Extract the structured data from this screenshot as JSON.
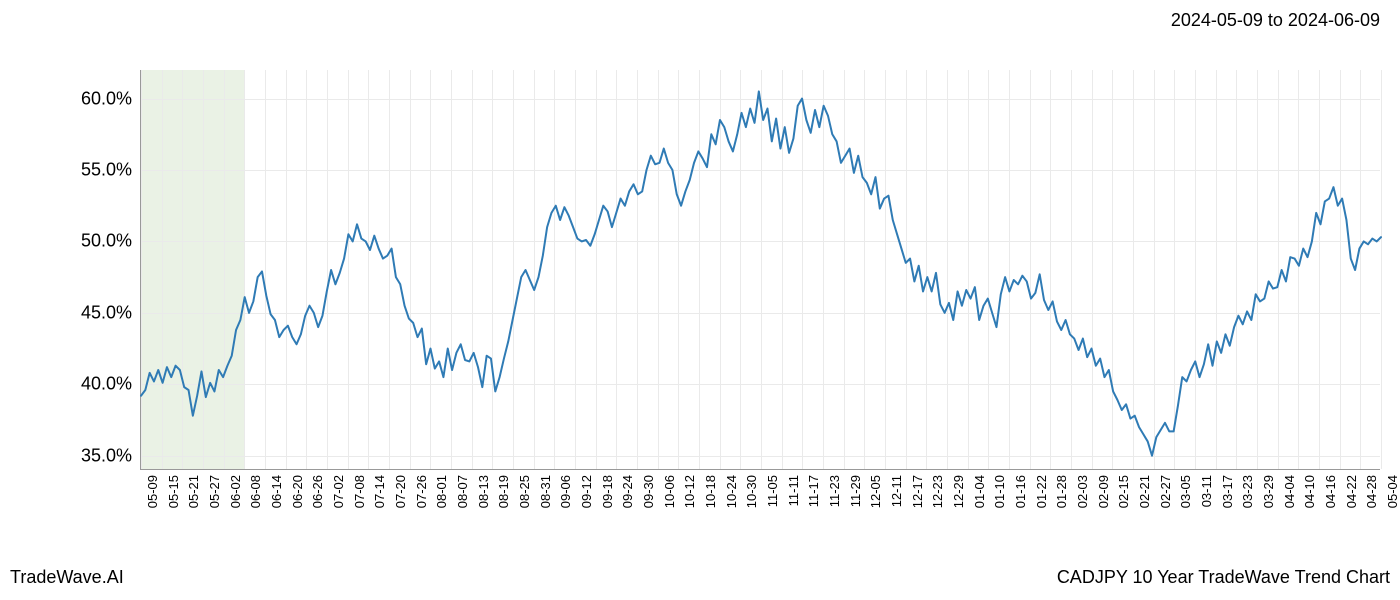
{
  "header": {
    "date_range": "2024-05-09 to 2024-06-09"
  },
  "footer": {
    "left": "TradeWave.AI",
    "right": "CADJPY 10 Year TradeWave Trend Chart"
  },
  "chart": {
    "type": "line",
    "background_color": "#ffffff",
    "line_color": "#2f7bb5",
    "line_width": 2,
    "grid_color": "#eaeaea",
    "axis_color": "#999999",
    "highlight": {
      "color": "#d9e8d0",
      "opacity": 0.55,
      "start_label": "05-09",
      "end_label": "06-08"
    },
    "y_axis": {
      "min": 34,
      "max": 62,
      "ticks": [
        35,
        40,
        45,
        50,
        55,
        60
      ],
      "tick_suffix": ".0%",
      "fontsize": 18
    },
    "x_axis": {
      "labels": [
        "05-09",
        "05-15",
        "05-21",
        "05-27",
        "06-02",
        "06-08",
        "06-14",
        "06-20",
        "06-26",
        "07-02",
        "07-08",
        "07-14",
        "07-20",
        "07-26",
        "08-01",
        "08-07",
        "08-13",
        "08-19",
        "08-25",
        "08-31",
        "09-06",
        "09-12",
        "09-18",
        "09-24",
        "09-30",
        "10-06",
        "10-12",
        "10-18",
        "10-24",
        "10-30",
        "11-05",
        "11-11",
        "11-17",
        "11-23",
        "11-29",
        "12-05",
        "12-11",
        "12-17",
        "12-23",
        "12-29",
        "01-04",
        "01-10",
        "01-16",
        "01-22",
        "01-28",
        "02-03",
        "02-09",
        "02-15",
        "02-21",
        "02-27",
        "03-05",
        "03-11",
        "03-17",
        "03-23",
        "03-29",
        "04-04",
        "04-10",
        "04-16",
        "04-22",
        "04-28",
        "05-04"
      ],
      "fontsize": 13,
      "rotation": -90
    },
    "data": [
      39.2,
      39.6,
      40.8,
      40.2,
      41.0,
      40.1,
      41.2,
      40.5,
      41.3,
      41.0,
      39.8,
      39.6,
      37.8,
      39.2,
      40.9,
      39.1,
      40.1,
      39.5,
      41.0,
      40.5,
      41.3,
      42.0,
      43.8,
      44.5,
      46.1,
      45.0,
      45.8,
      47.5,
      47.9,
      46.2,
      44.9,
      44.5,
      43.3,
      43.8,
      44.1,
      43.3,
      42.8,
      43.5,
      44.8,
      45.5,
      45.0,
      44.0,
      44.8,
      46.5,
      48.0,
      47.0,
      47.8,
      48.8,
      50.5,
      50.0,
      51.2,
      50.2,
      50.0,
      49.4,
      50.4,
      49.5,
      48.8,
      49.0,
      49.5,
      47.5,
      47.0,
      45.5,
      44.6,
      44.3,
      43.3,
      43.9,
      41.4,
      42.5,
      41.1,
      41.6,
      40.5,
      42.5,
      41.0,
      42.2,
      42.8,
      41.7,
      41.6,
      42.2,
      41.2,
      39.8,
      42.0,
      41.8,
      39.5,
      40.5,
      41.8,
      43.0,
      44.5,
      46.0,
      47.5,
      48.0,
      47.3,
      46.6,
      47.5,
      49.0,
      51.0,
      52.0,
      52.5,
      51.5,
      52.4,
      51.8,
      51.0,
      50.2,
      50.0,
      50.1,
      49.7,
      50.5,
      51.5,
      52.5,
      52.1,
      51.0,
      52.0,
      53.0,
      52.5,
      53.5,
      54.0,
      53.3,
      53.5,
      55.0,
      56.0,
      55.4,
      55.5,
      56.5,
      55.5,
      55.0,
      53.3,
      52.5,
      53.5,
      54.3,
      55.5,
      56.3,
      55.8,
      55.2,
      57.5,
      56.8,
      58.5,
      58.0,
      57.0,
      56.3,
      57.5,
      59.0,
      58.0,
      59.3,
      58.3,
      60.5,
      58.5,
      59.3,
      57.0,
      58.6,
      56.5,
      58.0,
      56.2,
      57.2,
      59.5,
      60.0,
      58.5,
      57.6,
      59.2,
      58.0,
      59.5,
      58.8,
      57.5,
      57.0,
      55.5,
      56.0,
      56.5,
      54.8,
      56.0,
      54.5,
      54.1,
      53.3,
      54.5,
      52.3,
      53.0,
      53.2,
      51.5,
      50.5,
      49.5,
      48.5,
      48.8,
      47.2,
      48.3,
      46.5,
      47.5,
      46.5,
      47.8,
      45.6,
      45.0,
      45.7,
      44.5,
      46.5,
      45.5,
      46.6,
      46.0,
      46.8,
      44.5,
      45.5,
      46.0,
      45.0,
      44.0,
      46.3,
      47.5,
      46.5,
      47.3,
      47.0,
      47.6,
      47.2,
      46.0,
      46.4,
      47.7,
      45.9,
      45.2,
      45.8,
      44.4,
      43.8,
      44.5,
      43.5,
      43.2,
      42.4,
      43.2,
      41.9,
      42.5,
      41.3,
      41.8,
      40.5,
      41.0,
      39.5,
      38.9,
      38.2,
      38.6,
      37.6,
      37.8,
      37.0,
      36.5,
      36.0,
      35.0,
      36.3,
      36.8,
      37.3,
      36.7,
      36.7,
      38.5,
      40.5,
      40.2,
      41.0,
      41.6,
      40.5,
      41.4,
      42.8,
      41.3,
      43.0,
      42.2,
      43.5,
      42.7,
      44.0,
      44.8,
      44.2,
      45.1,
      44.5,
      46.3,
      45.8,
      46.0,
      47.2,
      46.7,
      46.8,
      48.0,
      47.2,
      48.9,
      48.8,
      48.3,
      49.5,
      48.9,
      50.0,
      52.0,
      51.2,
      52.8,
      53.0,
      53.8,
      52.5,
      53.0,
      51.5,
      48.8,
      48.0,
      49.5,
      50.0,
      49.8,
      50.2,
      50.0,
      50.3
    ]
  }
}
